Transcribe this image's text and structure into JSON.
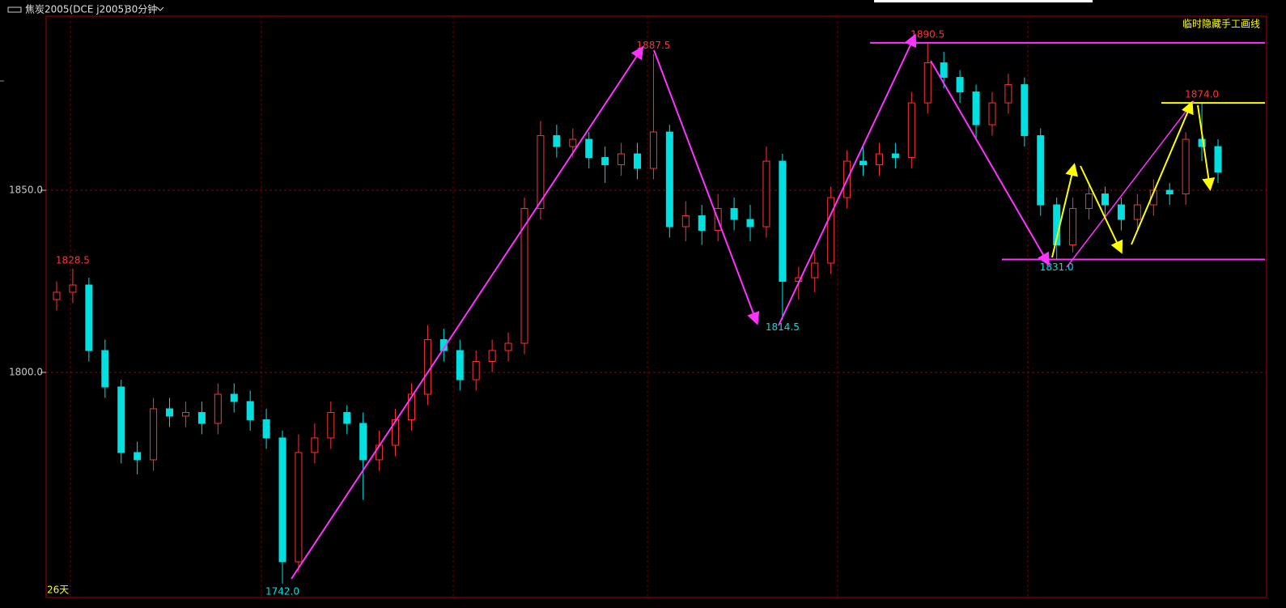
{
  "header": {
    "symbol": "焦炭2005(DCE j2005)",
    "period": "30分钟"
  },
  "chart_data": {
    "type": "candlestick",
    "open": [
      1820,
      1822,
      1824,
      1806,
      1796,
      1778,
      1776,
      1790,
      1788,
      1789,
      1786,
      1794,
      1792,
      1787,
      1782,
      1748,
      1778,
      1782,
      1789,
      1786,
      1776,
      1780,
      1787,
      1794,
      1809,
      1806,
      1798,
      1803,
      1806,
      1808,
      1845,
      1865,
      1862,
      1864,
      1859,
      1857,
      1860,
      1856,
      1866,
      1840,
      1843,
      1839,
      1845,
      1842,
      1840,
      1858,
      1825,
      1826,
      1830,
      1848,
      1858,
      1857,
      1860,
      1859,
      1874,
      1885,
      1881,
      1877,
      1868,
      1874,
      1879,
      1865,
      1846,
      1835,
      1845,
      1849,
      1846,
      1842,
      1846,
      1850,
      1849,
      1864,
      1862
    ],
    "high": [
      1825,
      1828.5,
      1826,
      1809,
      1798,
      1781,
      1793,
      1793,
      1792,
      1792,
      1797,
      1797,
      1795,
      1790,
      1784,
      1783,
      1786,
      1792,
      1791,
      1789,
      1784,
      1790,
      1797,
      1813,
      1812,
      1809,
      1806,
      1809,
      1811,
      1848,
      1869,
      1868,
      1867,
      1866,
      1862,
      1863,
      1863,
      1887.5,
      1868,
      1847,
      1846,
      1849,
      1848,
      1846,
      1862,
      1860,
      1829,
      1833,
      1851,
      1861,
      1862,
      1863,
      1863,
      1877,
      1890.5,
      1888,
      1883,
      1879,
      1877,
      1882,
      1881,
      1867,
      1848,
      1848,
      1852,
      1851,
      1848,
      1849,
      1853,
      1852,
      1866,
      1874,
      1864
    ],
    "low": [
      1817,
      1819,
      1803,
      1793,
      1775,
      1772,
      1773,
      1785,
      1785,
      1783,
      1783,
      1789,
      1784,
      1779,
      1742,
      1745,
      1775,
      1779,
      1783,
      1765,
      1773,
      1777,
      1784,
      1791,
      1803,
      1795,
      1795,
      1800,
      1803,
      1805,
      1842,
      1859,
      1859,
      1856,
      1852,
      1854,
      1853,
      1853,
      1837,
      1836,
      1835,
      1836,
      1839,
      1836,
      1837,
      1814.5,
      1820,
      1822,
      1827,
      1845,
      1854,
      1854,
      1856,
      1856,
      1871,
      1878,
      1874,
      1864,
      1865,
      1871,
      1862,
      1843,
      1831,
      1833,
      1842,
      1843,
      1839,
      1839,
      1843,
      1846,
      1846,
      1858,
      1852
    ],
    "close": [
      1822,
      1824,
      1806,
      1796,
      1778,
      1776,
      1790,
      1788,
      1789,
      1786,
      1794,
      1792,
      1787,
      1782,
      1748,
      1778,
      1782,
      1789,
      1786,
      1776,
      1780,
      1787,
      1794,
      1809,
      1806,
      1798,
      1803,
      1806,
      1808,
      1845,
      1865,
      1862,
      1864,
      1859,
      1857,
      1860,
      1856,
      1866,
      1840,
      1843,
      1839,
      1845,
      1842,
      1840,
      1858,
      1825,
      1826,
      1830,
      1848,
      1858,
      1857,
      1860,
      1859,
      1874,
      1885,
      1881,
      1877,
      1868,
      1874,
      1879,
      1865,
      1846,
      1835,
      1845,
      1849,
      1846,
      1842,
      1846,
      1850,
      1849,
      1864,
      1862,
      1855
    ],
    "up_color": "#ff3232",
    "down_color": "#00e0e0",
    "ylim": [
      1738.2,
      1897.8
    ],
    "yticks": [
      {
        "value": 1800,
        "label": "1800.0"
      },
      {
        "value": 1850,
        "label": "1850.0"
      }
    ],
    "grid": true,
    "price_labels": [
      1828.5,
      1887.5,
      1890.5,
      1814.5,
      {
        "value": 1831,
        "label": "1831.0"
      },
      {
        "value": 1874,
        "label": "1874.0"
      },
      {
        "value": 1742,
        "label": "1742.0"
      }
    ],
    "level_lines": [
      {
        "value": 1890.5,
        "color": "#ff33ff"
      },
      {
        "value": 1874,
        "color": "#ffff00"
      },
      {
        "value": 1831,
        "color": "#ff33ff"
      }
    ],
    "range_label": "26天",
    "toggle_label": "临时隐藏手工画线"
  }
}
